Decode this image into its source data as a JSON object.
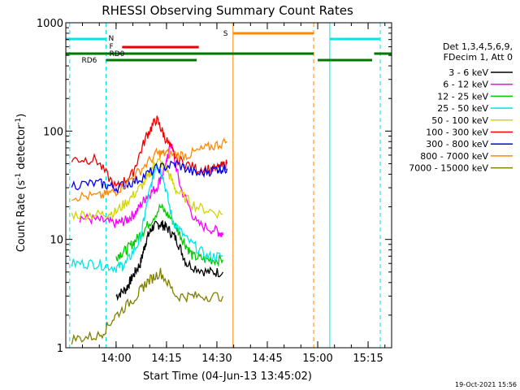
{
  "chart_data": {
    "type": "line",
    "title": "RHESSI Observing Summary Count Rates",
    "xlabel": "Start Time (04-Jun-13 13:45:02)",
    "ylabel_parts": [
      "Count Rate (s",
      "-1",
      " detector",
      "-1",
      ")"
    ],
    "y_scale": "log",
    "ylim": [
      1,
      1000
    ],
    "xlim_minutes": [
      "13:45:02",
      "15:22:00"
    ],
    "x_ticks": [
      "14:00",
      "14:15",
      "14:30",
      "14:45",
      "15:00",
      "15:15"
    ],
    "y_ticks": [
      "1",
      "10",
      "100",
      "1000"
    ],
    "legend": {
      "position": "right",
      "header": [
        "Det 1,3,4,5,6,9,",
        "FDecim 1, Att 0"
      ],
      "entries": [
        {
          "label": "3 - 6 keV",
          "color": "#000000"
        },
        {
          "label": "6 - 12 keV",
          "color": "#ff00ff"
        },
        {
          "label": "12 - 25 keV",
          "color": "#00cc00"
        },
        {
          "label": "25 - 50 keV",
          "color": "#00e5e5"
        },
        {
          "label": "50 - 100 keV",
          "color": "#d4d400"
        },
        {
          "label": "100 - 300 keV",
          "color": "#ee0000"
        },
        {
          "label": "300 - 800 keV",
          "color": "#0000ee"
        },
        {
          "label": "800 - 7000 keV",
          "color": "#ff8800"
        },
        {
          "label": "7000 - 15000 keV",
          "color": "#808000"
        }
      ]
    },
    "flag_labels": {
      "N": "N",
      "F": "F",
      "RD0": "RD0",
      "RD6": "RD6",
      "S": "S"
    },
    "series": [
      {
        "name": "3 - 6 keV",
        "color": "#000000",
        "points": [
          [
            14.0,
            3
          ],
          [
            14.05,
            3.5
          ],
          [
            14.08,
            4.5
          ],
          [
            14.12,
            6
          ],
          [
            14.15,
            10
          ],
          [
            14.18,
            13
          ],
          [
            14.22,
            14
          ],
          [
            14.25,
            13
          ],
          [
            14.3,
            10
          ],
          [
            14.35,
            6
          ],
          [
            14.45,
            5
          ],
          [
            14.53,
            5
          ]
        ]
      },
      {
        "name": "6 - 12 keV",
        "color": "#ff00ff",
        "points": [
          [
            13.82,
            16
          ],
          [
            13.92,
            15
          ],
          [
            14.0,
            14
          ],
          [
            14.05,
            15
          ],
          [
            14.1,
            18
          ],
          [
            14.15,
            25
          ],
          [
            14.2,
            30
          ],
          [
            14.25,
            50
          ],
          [
            14.27,
            80
          ],
          [
            14.32,
            30
          ],
          [
            14.4,
            14
          ],
          [
            14.5,
            12
          ],
          [
            14.53,
            11
          ]
        ]
      },
      {
        "name": "12 - 25 keV",
        "color": "#00cc00",
        "points": [
          [
            14.0,
            7
          ],
          [
            14.05,
            8
          ],
          [
            14.1,
            10
          ],
          [
            14.15,
            13
          ],
          [
            14.22,
            20
          ],
          [
            14.28,
            15
          ],
          [
            14.33,
            10
          ],
          [
            14.38,
            7
          ],
          [
            14.45,
            6.5
          ],
          [
            14.53,
            6.5
          ]
        ]
      },
      {
        "name": "25 - 50 keV",
        "color": "#00e5e5",
        "points": [
          [
            13.78,
            6
          ],
          [
            13.9,
            6
          ],
          [
            14.0,
            5.5
          ],
          [
            14.05,
            6
          ],
          [
            14.12,
            10
          ],
          [
            14.16,
            25
          ],
          [
            14.2,
            50
          ],
          [
            14.23,
            40
          ],
          [
            14.28,
            15
          ],
          [
            14.35,
            10
          ],
          [
            14.45,
            7
          ],
          [
            14.53,
            7
          ]
        ]
      },
      {
        "name": "50 - 100 keV",
        "color": "#d4d400",
        "points": [
          [
            13.78,
            17
          ],
          [
            13.92,
            17
          ],
          [
            14.0,
            18
          ],
          [
            14.08,
            25
          ],
          [
            14.15,
            35
          ],
          [
            14.2,
            55
          ],
          [
            14.25,
            45
          ],
          [
            14.3,
            28
          ],
          [
            14.4,
            20
          ],
          [
            14.53,
            17
          ]
        ]
      },
      {
        "name": "100 - 300 keV",
        "color": "#ee0000",
        "points": [
          [
            13.78,
            55
          ],
          [
            13.9,
            55
          ],
          [
            14.0,
            30
          ],
          [
            14.08,
            40
          ],
          [
            14.15,
            90
          ],
          [
            14.2,
            130
          ],
          [
            14.24,
            90
          ],
          [
            14.3,
            55
          ],
          [
            14.4,
            45
          ],
          [
            14.5,
            45
          ],
          [
            14.55,
            50
          ]
        ]
      },
      {
        "name": "300 - 800 keV",
        "color": "#0000ee",
        "points": [
          [
            13.78,
            32
          ],
          [
            13.92,
            33
          ],
          [
            14.0,
            30
          ],
          [
            14.1,
            35
          ],
          [
            14.2,
            45
          ],
          [
            14.3,
            50
          ],
          [
            14.4,
            40
          ],
          [
            14.5,
            45
          ],
          [
            14.55,
            45
          ]
        ]
      },
      {
        "name": "800 - 7000 keV",
        "color": "#ff8800",
        "points": [
          [
            13.78,
            25
          ],
          [
            13.92,
            25
          ],
          [
            14.0,
            28
          ],
          [
            14.1,
            40
          ],
          [
            14.2,
            62
          ],
          [
            14.25,
            62
          ],
          [
            14.35,
            60
          ],
          [
            14.45,
            70
          ],
          [
            14.55,
            80
          ]
        ]
      },
      {
        "name": "7000 - 15000 keV",
        "color": "#808000",
        "points": [
          [
            13.78,
            1.2
          ],
          [
            13.92,
            1.3
          ],
          [
            14.0,
            2
          ],
          [
            14.1,
            3
          ],
          [
            14.15,
            4
          ],
          [
            14.22,
            5
          ],
          [
            14.3,
            3
          ],
          [
            14.4,
            3
          ],
          [
            14.53,
            3
          ]
        ]
      }
    ]
  },
  "footer": {
    "timestamp": "19-Oct-2021 15:56"
  }
}
